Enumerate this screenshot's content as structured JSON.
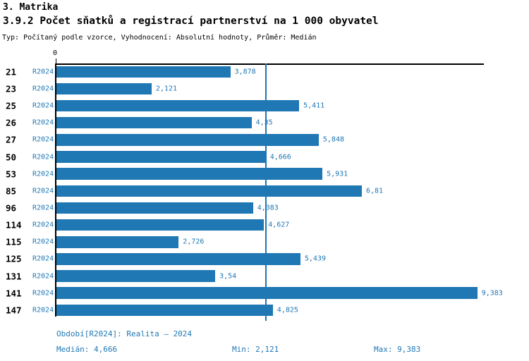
{
  "header": {
    "title": "3. Matrika",
    "subtitle": "3.9.2 Počet sňatků a registrací partnerství na 1 000 obyvatel",
    "meta": "Typ: Počítaný podle vzorce, Vyhodnocení: Absolutní hodnoty, Průměr: Medián"
  },
  "chart_data": {
    "type": "bar",
    "orientation": "horizontal",
    "title": "3.9.2 Počet sňatků a registrací partnerství na 1 000 obyvatel",
    "categories": [
      "21",
      "23",
      "25",
      "26",
      "27",
      "50",
      "53",
      "85",
      "96",
      "114",
      "115",
      "125",
      "131",
      "141",
      "147"
    ],
    "series": [
      {
        "name": "R2024",
        "values": [
          3.878,
          2.121,
          5.411,
          4.35,
          5.848,
          4.666,
          5.931,
          6.81,
          4.383,
          4.627,
          2.726,
          5.439,
          3.54,
          9.383,
          4.825
        ]
      }
    ],
    "value_labels": [
      "3,878",
      "2,121",
      "5,411",
      "4,35",
      "5,848",
      "4,666",
      "5,931",
      "6,81",
      "4,383",
      "4,627",
      "2,726",
      "5,439",
      "3,54",
      "9,383",
      "4,825"
    ],
    "x_tick_labels": [
      "0"
    ],
    "xlabel": "",
    "ylabel": "",
    "xlim": [
      0,
      9.53
    ],
    "median_value": 4.666,
    "grid": false,
    "legend_position": "none",
    "bar_color": "#1f77b4"
  },
  "footer": {
    "period": "Období[R2024]: Realita – 2024",
    "median": "Medián: 4,666",
    "min": "Min: 2,121",
    "max": "Max: 9,383"
  },
  "colors": {
    "accent": "#1f77b4",
    "axis": "#000000",
    "background": "#ffffff"
  }
}
